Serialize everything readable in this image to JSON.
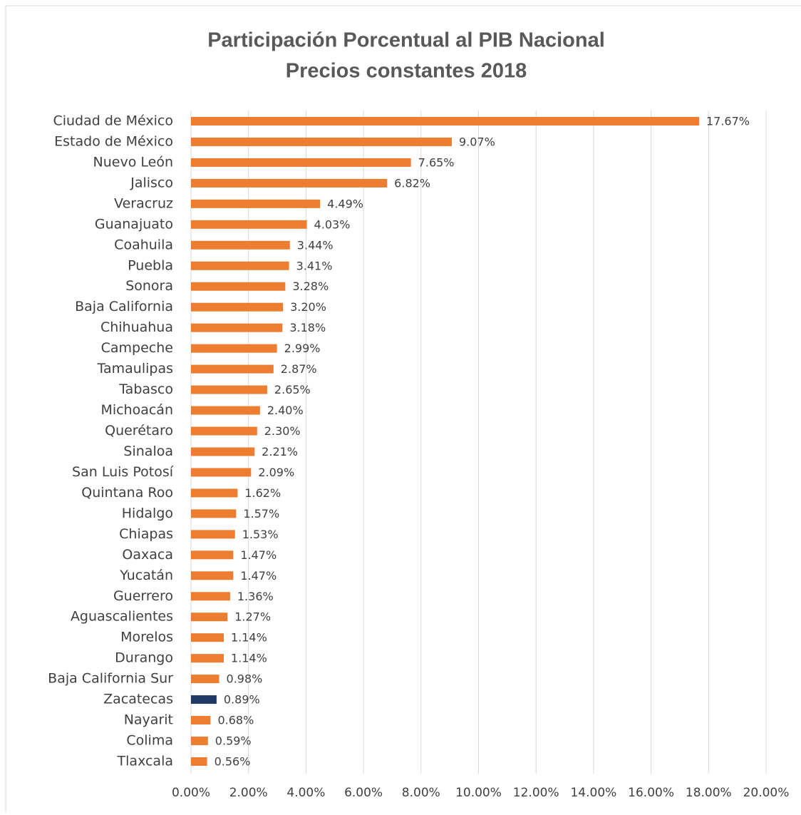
{
  "chart_data": {
    "type": "bar",
    "orientation": "horizontal",
    "title": [
      "Participación Porcentual al PIB Nacional",
      "Precios constantes 2018"
    ],
    "categories": [
      "Ciudad de México",
      "Estado de México",
      "Nuevo León",
      "Jalisco",
      "Veracruz",
      "Guanajuato",
      "Coahuila",
      "Puebla",
      "Sonora",
      "Baja California",
      "Chihuahua",
      "Campeche",
      "Tamaulipas",
      "Tabasco",
      "Michoacán",
      "Querétaro",
      "Sinaloa",
      "San Luis Potosí",
      "Quintana Roo",
      "Hidalgo",
      "Chiapas",
      "Oaxaca",
      "Yucatán",
      "Guerrero",
      "Aguascalientes",
      "Morelos",
      "Durango",
      "Baja California Sur",
      "Zacatecas",
      "Nayarit",
      "Colima",
      "Tlaxcala"
    ],
    "values": [
      17.67,
      9.07,
      7.65,
      6.82,
      4.49,
      4.03,
      3.44,
      3.41,
      3.28,
      3.2,
      3.18,
      2.99,
      2.87,
      2.65,
      2.4,
      2.3,
      2.21,
      2.09,
      1.62,
      1.57,
      1.53,
      1.47,
      1.47,
      1.36,
      1.27,
      1.14,
      1.14,
      0.98,
      0.89,
      0.68,
      0.59,
      0.56
    ],
    "value_labels": [
      "17.67%",
      "9.07%",
      "7.65%",
      "6.82%",
      "4.49%",
      "4.03%",
      "3.44%",
      "3.41%",
      "3.28%",
      "3.20%",
      "3.18%",
      "2.99%",
      "2.87%",
      "2.65%",
      "2.40%",
      "2.30%",
      "2.21%",
      "2.09%",
      "1.62%",
      "1.57%",
      "1.53%",
      "1.47%",
      "1.47%",
      "1.36%",
      "1.27%",
      "1.14%",
      "1.14%",
      "0.98%",
      "0.89%",
      "0.68%",
      "0.59%",
      "0.56%"
    ],
    "colors": [
      "#ed7d31",
      "#ed7d31",
      "#ed7d31",
      "#ed7d31",
      "#ed7d31",
      "#ed7d31",
      "#ed7d31",
      "#ed7d31",
      "#ed7d31",
      "#ed7d31",
      "#ed7d31",
      "#ed7d31",
      "#ed7d31",
      "#ed7d31",
      "#ed7d31",
      "#ed7d31",
      "#ed7d31",
      "#ed7d31",
      "#ed7d31",
      "#ed7d31",
      "#ed7d31",
      "#ed7d31",
      "#ed7d31",
      "#ed7d31",
      "#ed7d31",
      "#ed7d31",
      "#ed7d31",
      "#ed7d31",
      "#203864",
      "#ed7d31",
      "#ed7d31",
      "#ed7d31"
    ],
    "xlim": [
      0,
      20
    ],
    "xticks": [
      {
        "value": 0,
        "label": "0.00%"
      },
      {
        "value": 2,
        "label": "2.00%"
      },
      {
        "value": 4,
        "label": "4.00%"
      },
      {
        "value": 6,
        "label": "6.00%"
      },
      {
        "value": 8,
        "label": "8.00%"
      },
      {
        "value": 10,
        "label": "10.00%"
      },
      {
        "value": 12,
        "label": "12.00%"
      },
      {
        "value": 14,
        "label": "14.00%"
      },
      {
        "value": 16,
        "label": "16.00%"
      },
      {
        "value": 18,
        "label": "18.00%"
      },
      {
        "value": 20,
        "label": "20.00%"
      }
    ],
    "grid": true
  }
}
